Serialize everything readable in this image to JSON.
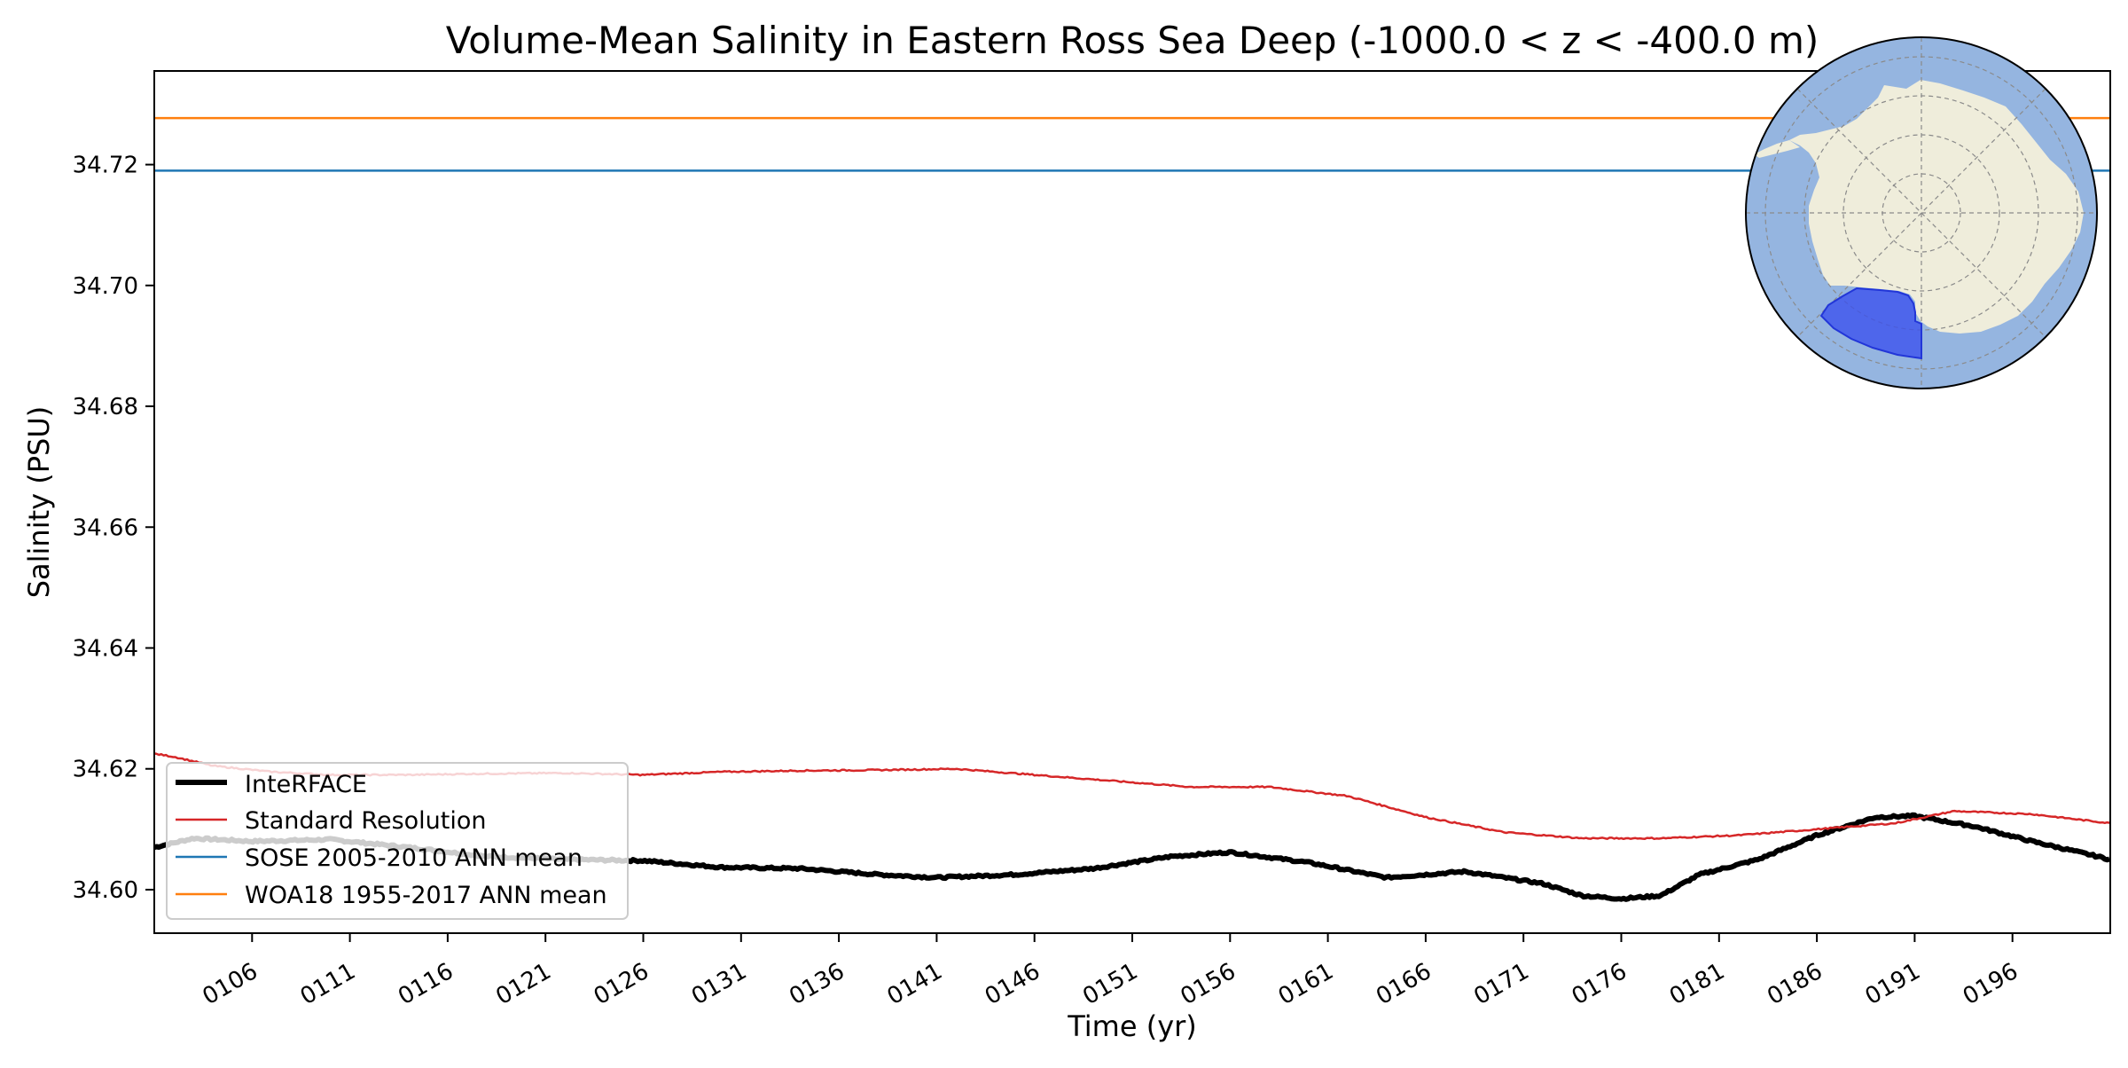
{
  "chart_data": {
    "type": "line",
    "title": "Volume-Mean Salinity in Eastern Ross Sea Deep (-1000.0 < z < -400.0 m)",
    "xlabel": "Time (yr)",
    "ylabel": "Salinity (PSU)",
    "xlim": [
      101,
      201
    ],
    "ylim": [
      34.5928,
      34.7355
    ],
    "x_ticks": [
      106,
      111,
      116,
      121,
      126,
      131,
      136,
      141,
      146,
      151,
      156,
      161,
      166,
      171,
      176,
      181,
      186,
      191,
      196
    ],
    "x_tick_labels": [
      "0106",
      "0111",
      "0116",
      "0121",
      "0126",
      "0131",
      "0136",
      "0141",
      "0146",
      "0151",
      "0156",
      "0161",
      "0166",
      "0171",
      "0176",
      "0181",
      "0186",
      "0191",
      "0196"
    ],
    "y_ticks": [
      34.6,
      34.62,
      34.64,
      34.66,
      34.68,
      34.7,
      34.72
    ],
    "y_tick_labels": [
      "34.60",
      "34.62",
      "34.64",
      "34.66",
      "34.68",
      "34.70",
      "34.72"
    ],
    "legend_position": "lower-left",
    "series": [
      {
        "name": "InteRFACE",
        "color": "#000000",
        "style": "thick",
        "x": [
          101,
          103,
          106,
          110,
          114,
          118,
          122,
          126,
          130,
          134,
          138,
          141,
          145,
          149,
          153,
          156,
          160,
          164,
          168,
          172,
          174,
          176,
          178,
          180,
          183,
          186,
          189,
          191,
          194,
          197,
          201
        ],
        "values": [
          34.607,
          34.6085,
          34.608,
          34.6083,
          34.607,
          34.6055,
          34.605,
          34.6048,
          34.6037,
          34.6035,
          34.6025,
          34.602,
          34.6025,
          34.6035,
          34.6055,
          34.6062,
          34.6045,
          34.602,
          34.603,
          34.601,
          34.599,
          34.5985,
          34.599,
          34.6025,
          34.605,
          34.609,
          34.612,
          34.6122,
          34.6105,
          34.608,
          34.605
        ]
      },
      {
        "name": "Standard Resolution",
        "color": "#d62728",
        "style": "thin",
        "x": [
          101,
          102,
          104,
          107,
          110,
          114,
          118,
          122,
          126,
          130,
          134,
          138,
          142,
          146,
          150,
          154,
          158,
          162,
          166,
          170,
          174,
          178,
          182,
          186,
          190,
          193,
          197,
          201
        ],
        "values": [
          34.6225,
          34.622,
          34.6205,
          34.6195,
          34.619,
          34.619,
          34.6192,
          34.6193,
          34.619,
          34.6195,
          34.6197,
          34.6198,
          34.62,
          34.619,
          34.618,
          34.617,
          34.617,
          34.6155,
          34.612,
          34.6095,
          34.6085,
          34.6085,
          34.609,
          34.61,
          34.611,
          34.613,
          34.6125,
          34.611
        ]
      },
      {
        "name": "SOSE 2005-2010 ANN mean",
        "color": "#1f77b4",
        "style": "hline",
        "values": [
          34.719
        ]
      },
      {
        "name": "WOA18 1955-2017 ANN mean",
        "color": "#ff7f0e",
        "style": "hline",
        "values": [
          34.7277
        ]
      }
    ]
  }
}
